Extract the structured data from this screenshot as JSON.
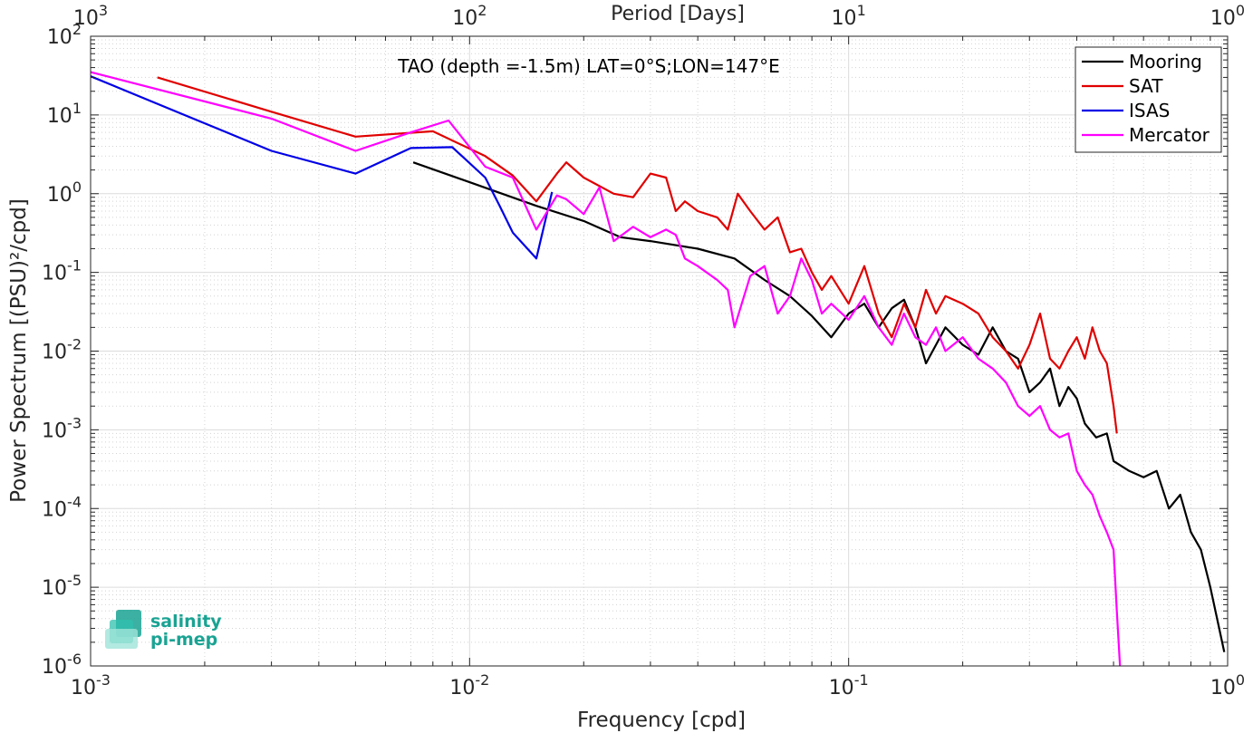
{
  "chart_data": {
    "type": "line",
    "title": "TAO (depth =-1.5m) LAT=0°S;LON=147°E",
    "xlabel": "Frequency [cpd]",
    "ylabel": "Power Spectrum [(PSU)²/cpd]",
    "top_xlabel": "Period [Days]",
    "x_scale": "log",
    "y_scale": "log",
    "xlim": [
      0.001,
      1
    ],
    "ylim": [
      1e-06,
      100
    ],
    "grid": true,
    "legend_position": "top-right",
    "xticks": [
      {
        "v": 0.001,
        "base": "10",
        "exp": "-3"
      },
      {
        "v": 0.01,
        "base": "10",
        "exp": "-2"
      },
      {
        "v": 0.1,
        "base": "10",
        "exp": "-1"
      },
      {
        "v": 1,
        "base": "10",
        "exp": "0"
      }
    ],
    "top_xticks": [
      {
        "v": 0.001,
        "base": "10",
        "exp": "3"
      },
      {
        "v": 0.01,
        "base": "10",
        "exp": "2"
      },
      {
        "v": 0.1,
        "base": "10",
        "exp": "1"
      },
      {
        "v": 1,
        "base": "10",
        "exp": "0"
      }
    ],
    "yticks": [
      {
        "v": 100,
        "base": "10",
        "exp": "2"
      },
      {
        "v": 10,
        "base": "10",
        "exp": "1"
      },
      {
        "v": 1,
        "base": "10",
        "exp": "0"
      },
      {
        "v": 0.1,
        "base": "10",
        "exp": "-1"
      },
      {
        "v": 0.01,
        "base": "10",
        "exp": "-2"
      },
      {
        "v": 0.001,
        "base": "10",
        "exp": "-3"
      },
      {
        "v": 0.0001,
        "base": "10",
        "exp": "-4"
      },
      {
        "v": 1e-05,
        "base": "10",
        "exp": "-5"
      },
      {
        "v": 1e-06,
        "base": "10",
        "exp": "-6"
      }
    ],
    "series": [
      {
        "name": "Mooring",
        "color": "#000000",
        "points": [
          [
            0.0071,
            2.5
          ],
          [
            0.01,
            1.4
          ],
          [
            0.015,
            0.7
          ],
          [
            0.02,
            0.45
          ],
          [
            0.025,
            0.28
          ],
          [
            0.03,
            0.25
          ],
          [
            0.04,
            0.2
          ],
          [
            0.05,
            0.15
          ],
          [
            0.06,
            0.08
          ],
          [
            0.07,
            0.05
          ],
          [
            0.08,
            0.028
          ],
          [
            0.09,
            0.015
          ],
          [
            0.1,
            0.03
          ],
          [
            0.11,
            0.04
          ],
          [
            0.12,
            0.02
          ],
          [
            0.13,
            0.035
          ],
          [
            0.14,
            0.045
          ],
          [
            0.15,
            0.02
          ],
          [
            0.16,
            0.007
          ],
          [
            0.17,
            0.012
          ],
          [
            0.18,
            0.02
          ],
          [
            0.2,
            0.012
          ],
          [
            0.22,
            0.009
          ],
          [
            0.24,
            0.02
          ],
          [
            0.26,
            0.01
          ],
          [
            0.28,
            0.008
          ],
          [
            0.3,
            0.003
          ],
          [
            0.32,
            0.004
          ],
          [
            0.34,
            0.006
          ],
          [
            0.36,
            0.002
          ],
          [
            0.38,
            0.0035
          ],
          [
            0.4,
            0.0025
          ],
          [
            0.42,
            0.0012
          ],
          [
            0.45,
            0.0008
          ],
          [
            0.48,
            0.0009
          ],
          [
            0.5,
            0.0004
          ],
          [
            0.55,
            0.0003
          ],
          [
            0.6,
            0.00025
          ],
          [
            0.65,
            0.0003
          ],
          [
            0.7,
            0.0001
          ],
          [
            0.75,
            0.00015
          ],
          [
            0.8,
            5e-05
          ],
          [
            0.85,
            3e-05
          ],
          [
            0.9,
            1e-05
          ],
          [
            0.95,
            3e-06
          ],
          [
            0.98,
            1.5e-06
          ]
        ]
      },
      {
        "name": "SAT",
        "color": "#e00000",
        "points": [
          [
            0.0015,
            30
          ],
          [
            0.003,
            11
          ],
          [
            0.005,
            5.3
          ],
          [
            0.008,
            6.2
          ],
          [
            0.011,
            3
          ],
          [
            0.013,
            1.7
          ],
          [
            0.015,
            0.8
          ],
          [
            0.017,
            1.8
          ],
          [
            0.018,
            2.5
          ],
          [
            0.02,
            1.6
          ],
          [
            0.024,
            1
          ],
          [
            0.027,
            0.9
          ],
          [
            0.03,
            1.8
          ],
          [
            0.033,
            1.6
          ],
          [
            0.035,
            0.6
          ],
          [
            0.037,
            0.8
          ],
          [
            0.04,
            0.6
          ],
          [
            0.045,
            0.5
          ],
          [
            0.048,
            0.35
          ],
          [
            0.051,
            1
          ],
          [
            0.055,
            0.6
          ],
          [
            0.06,
            0.35
          ],
          [
            0.065,
            0.5
          ],
          [
            0.07,
            0.18
          ],
          [
            0.075,
            0.2
          ],
          [
            0.08,
            0.1
          ],
          [
            0.085,
            0.06
          ],
          [
            0.09,
            0.09
          ],
          [
            0.1,
            0.04
          ],
          [
            0.11,
            0.12
          ],
          [
            0.12,
            0.03
          ],
          [
            0.13,
            0.015
          ],
          [
            0.14,
            0.04
          ],
          [
            0.15,
            0.02
          ],
          [
            0.16,
            0.06
          ],
          [
            0.17,
            0.03
          ],
          [
            0.18,
            0.05
          ],
          [
            0.2,
            0.04
          ],
          [
            0.22,
            0.03
          ],
          [
            0.24,
            0.015
          ],
          [
            0.26,
            0.01
          ],
          [
            0.28,
            0.006
          ],
          [
            0.3,
            0.012
          ],
          [
            0.32,
            0.03
          ],
          [
            0.34,
            0.008
          ],
          [
            0.36,
            0.006
          ],
          [
            0.38,
            0.01
          ],
          [
            0.4,
            0.015
          ],
          [
            0.42,
            0.008
          ],
          [
            0.44,
            0.02
          ],
          [
            0.46,
            0.01
          ],
          [
            0.48,
            0.007
          ],
          [
            0.5,
            0.002
          ],
          [
            0.51,
            0.0009
          ]
        ]
      },
      {
        "name": "ISAS",
        "color": "#0000e6",
        "points": [
          [
            0.001,
            31
          ],
          [
            0.003,
            3.5
          ],
          [
            0.005,
            1.8
          ],
          [
            0.007,
            3.8
          ],
          [
            0.009,
            3.9
          ],
          [
            0.011,
            1.6
          ],
          [
            0.012,
            0.7
          ],
          [
            0.013,
            0.32
          ],
          [
            0.015,
            0.15
          ],
          [
            0.0165,
            1.05
          ]
        ]
      },
      {
        "name": "Mercator",
        "color": "#ff00ff",
        "points": [
          [
            0.001,
            35
          ],
          [
            0.003,
            9
          ],
          [
            0.005,
            3.5
          ],
          [
            0.007,
            6
          ],
          [
            0.0088,
            8.5
          ],
          [
            0.011,
            2.2
          ],
          [
            0.013,
            1.6
          ],
          [
            0.015,
            0.35
          ],
          [
            0.017,
            0.95
          ],
          [
            0.018,
            0.85
          ],
          [
            0.02,
            0.55
          ],
          [
            0.022,
            1.2
          ],
          [
            0.024,
            0.25
          ],
          [
            0.027,
            0.38
          ],
          [
            0.03,
            0.28
          ],
          [
            0.033,
            0.35
          ],
          [
            0.035,
            0.3
          ],
          [
            0.037,
            0.15
          ],
          [
            0.04,
            0.12
          ],
          [
            0.045,
            0.08
          ],
          [
            0.048,
            0.06
          ],
          [
            0.05,
            0.02
          ],
          [
            0.055,
            0.09
          ],
          [
            0.06,
            0.12
          ],
          [
            0.065,
            0.03
          ],
          [
            0.07,
            0.05
          ],
          [
            0.075,
            0.15
          ],
          [
            0.08,
            0.08
          ],
          [
            0.085,
            0.03
          ],
          [
            0.09,
            0.04
          ],
          [
            0.1,
            0.025
          ],
          [
            0.11,
            0.05
          ],
          [
            0.12,
            0.02
          ],
          [
            0.13,
            0.012
          ],
          [
            0.14,
            0.03
          ],
          [
            0.15,
            0.015
          ],
          [
            0.16,
            0.012
          ],
          [
            0.17,
            0.02
          ],
          [
            0.18,
            0.01
          ],
          [
            0.2,
            0.015
          ],
          [
            0.22,
            0.008
          ],
          [
            0.24,
            0.006
          ],
          [
            0.26,
            0.004
          ],
          [
            0.28,
            0.002
          ],
          [
            0.3,
            0.0015
          ],
          [
            0.32,
            0.002
          ],
          [
            0.34,
            0.001
          ],
          [
            0.36,
            0.0008
          ],
          [
            0.38,
            0.0009
          ],
          [
            0.4,
            0.0003
          ],
          [
            0.42,
            0.0002
          ],
          [
            0.44,
            0.00015
          ],
          [
            0.46,
            8e-05
          ],
          [
            0.48,
            5e-05
          ],
          [
            0.5,
            3e-05
          ],
          [
            0.51,
            5e-06
          ],
          [
            0.52,
            1e-06
          ]
        ]
      }
    ]
  },
  "logo": {
    "line1": "salinity",
    "line2": "pi-mep"
  }
}
